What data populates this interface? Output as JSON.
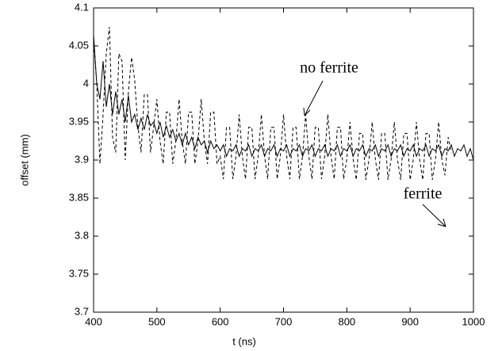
{
  "chart_data": {
    "type": "line",
    "xlabel": "t (ns)",
    "ylabel": "offset (mm)",
    "xlim": [
      400,
      1000
    ],
    "xticks": [
      400,
      500,
      600,
      700,
      800,
      900,
      1000
    ],
    "ylim": [
      3.7,
      4.1
    ],
    "yticks": [
      3.7,
      3.75,
      3.8,
      3.85,
      3.9,
      3.95,
      4,
      4.05,
      4.1
    ],
    "x": [
      400,
      405,
      410,
      415,
      420,
      425,
      430,
      435,
      440,
      445,
      450,
      455,
      460,
      465,
      470,
      475,
      480,
      485,
      490,
      495,
      500,
      505,
      510,
      515,
      520,
      525,
      530,
      535,
      540,
      545,
      550,
      555,
      560,
      565,
      570,
      575,
      580,
      585,
      590,
      595,
      600,
      605,
      610,
      615,
      620,
      625,
      630,
      635,
      640,
      645,
      650,
      655,
      660,
      665,
      670,
      675,
      680,
      685,
      690,
      695,
      700,
      705,
      710,
      715,
      720,
      725,
      730,
      735,
      740,
      745,
      750,
      755,
      760,
      765,
      770,
      775,
      780,
      785,
      790,
      795,
      800,
      805,
      810,
      815,
      820,
      825,
      830,
      835,
      840,
      845,
      850,
      855,
      860,
      865,
      870,
      875,
      880,
      885,
      890,
      895,
      900,
      905,
      910,
      915,
      920,
      925,
      930,
      935,
      940,
      945,
      950,
      955,
      960,
      965,
      970,
      975,
      980,
      985,
      990,
      995,
      1000
    ],
    "series": [
      {
        "name": "no ferrite",
        "color": "#000000",
        "dashed": true,
        "values": [
          4.06,
          4.0,
          3.895,
          3.96,
          4.04,
          4.075,
          3.93,
          3.91,
          4.04,
          4.03,
          3.9,
          3.99,
          4.035,
          4.005,
          3.944,
          3.91,
          3.986,
          3.986,
          3.91,
          3.944,
          3.98,
          3.925,
          3.895,
          3.963,
          3.963,
          3.895,
          3.925,
          3.98,
          3.925,
          3.895,
          3.963,
          3.963,
          3.895,
          3.925,
          3.98,
          3.925,
          3.895,
          3.963,
          3.963,
          3.895,
          3.905,
          3.875,
          3.943,
          3.943,
          3.875,
          3.905,
          3.96,
          3.905,
          3.875,
          3.943,
          3.943,
          3.875,
          3.905,
          3.96,
          3.905,
          3.875,
          3.943,
          3.943,
          3.875,
          3.905,
          3.96,
          3.905,
          3.875,
          3.943,
          3.943,
          3.875,
          3.905,
          3.96,
          3.905,
          3.875,
          3.943,
          3.943,
          3.875,
          3.905,
          3.96,
          3.905,
          3.875,
          3.943,
          3.943,
          3.875,
          3.901,
          3.95,
          3.901,
          3.874,
          3.935,
          3.935,
          3.874,
          3.901,
          3.95,
          3.901,
          3.874,
          3.935,
          3.935,
          3.874,
          3.901,
          3.95,
          3.901,
          3.874,
          3.935,
          3.935,
          3.874,
          3.901,
          3.95,
          3.901,
          3.874,
          3.935,
          3.935,
          3.874,
          3.901,
          3.95,
          3.901,
          3.88,
          3.93,
          3.91,
          null,
          null,
          null,
          null,
          null,
          null,
          null
        ]
      },
      {
        "name": "ferrite",
        "color": "#000000",
        "dashed": false,
        "values": [
          4.065,
          4.0,
          3.98,
          4.03,
          3.97,
          4.0,
          3.96,
          3.99,
          3.96,
          3.98,
          3.95,
          3.985,
          3.95,
          3.96,
          3.94,
          3.955,
          3.94,
          3.96,
          3.945,
          3.95,
          3.935,
          3.95,
          3.93,
          3.945,
          3.93,
          3.94,
          3.925,
          3.935,
          3.92,
          3.935,
          3.92,
          3.93,
          3.915,
          3.93,
          3.92,
          3.925,
          3.91,
          3.925,
          3.915,
          3.92,
          3.912,
          3.92,
          3.905,
          3.915,
          3.912,
          3.92,
          3.905,
          3.915,
          3.912,
          3.92,
          3.905,
          3.915,
          3.912,
          3.92,
          3.905,
          3.915,
          3.912,
          3.92,
          3.905,
          3.915,
          3.912,
          3.92,
          3.905,
          3.915,
          3.912,
          3.92,
          3.905,
          3.915,
          3.912,
          3.92,
          3.905,
          3.915,
          3.912,
          3.92,
          3.905,
          3.915,
          3.912,
          3.92,
          3.905,
          3.915,
          3.912,
          3.92,
          3.905,
          3.915,
          3.912,
          3.92,
          3.905,
          3.915,
          3.912,
          3.92,
          3.905,
          3.915,
          3.912,
          3.92,
          3.905,
          3.915,
          3.912,
          3.92,
          3.905,
          3.915,
          3.912,
          3.92,
          3.905,
          3.915,
          3.912,
          3.92,
          3.905,
          3.915,
          3.912,
          3.92,
          3.905,
          3.915,
          3.912,
          3.92,
          3.905,
          3.915,
          3.912,
          3.92,
          3.905,
          3.915,
          3.9
        ]
      }
    ]
  }
}
